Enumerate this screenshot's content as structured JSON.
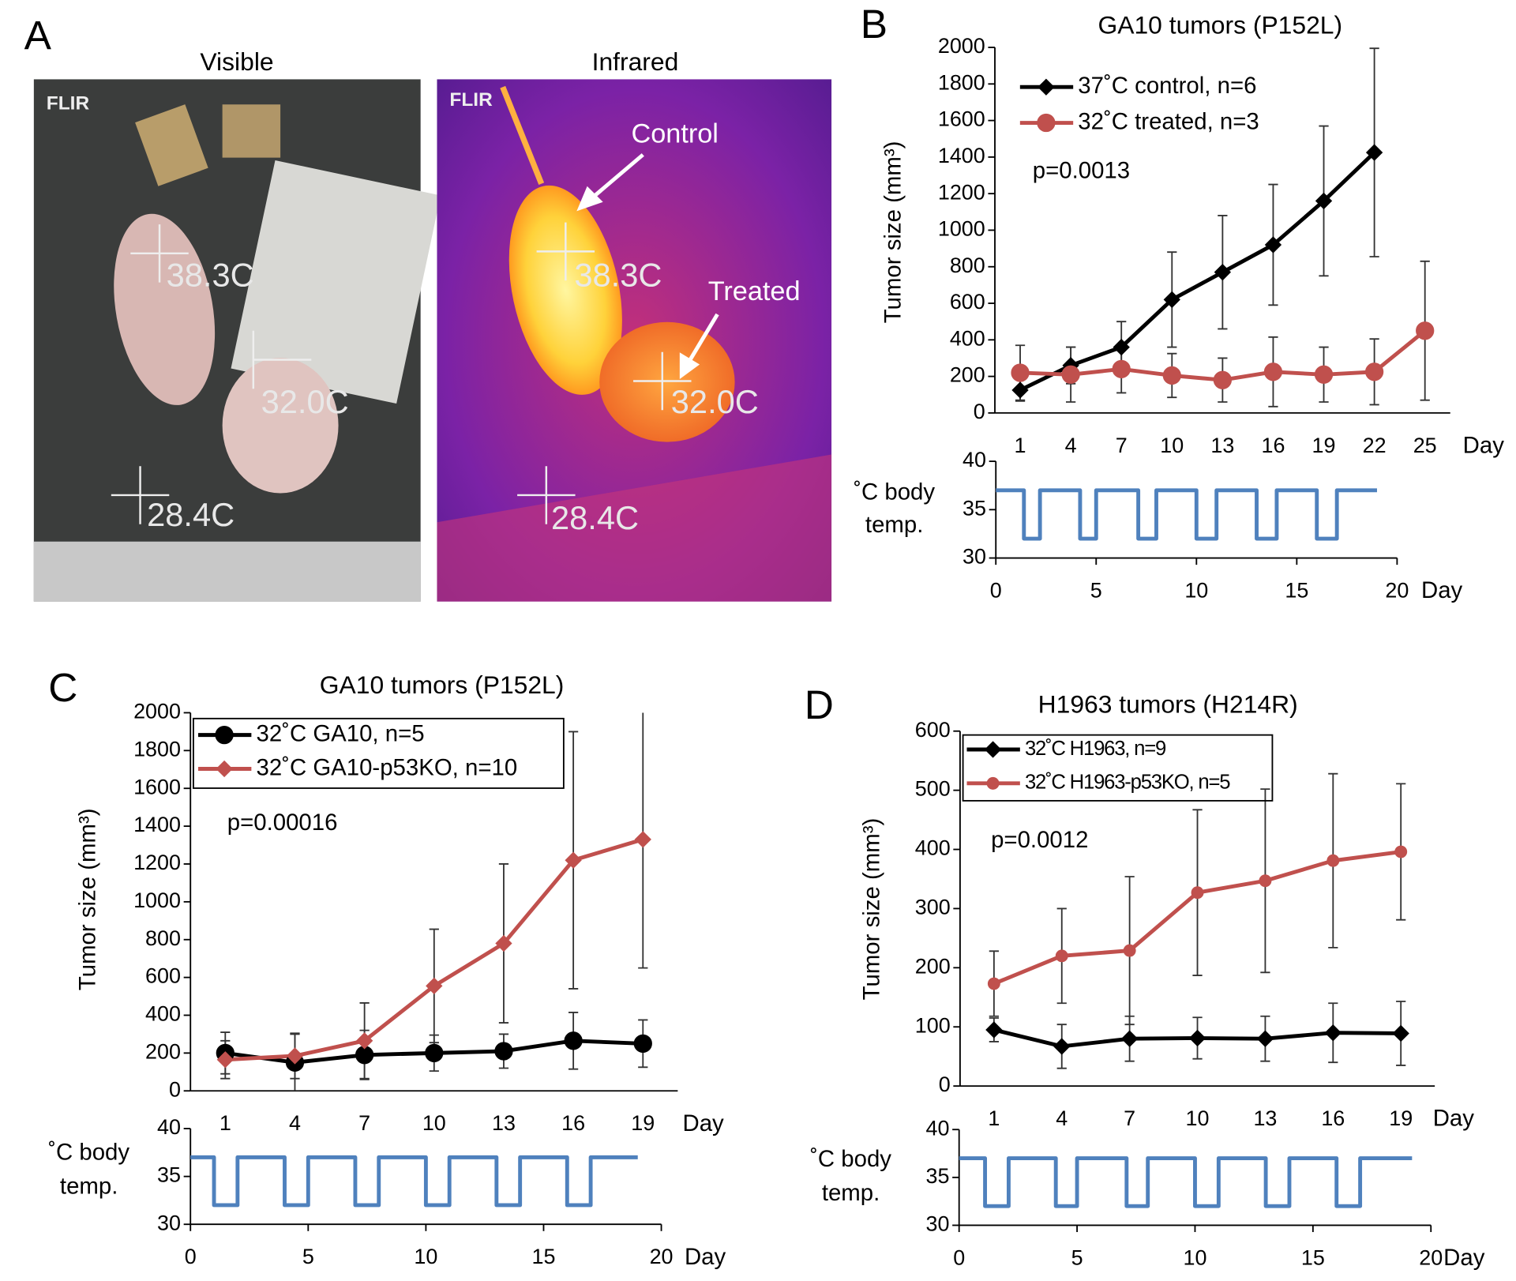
{
  "figure": {
    "panel_labels": [
      "A",
      "B",
      "C",
      "D"
    ],
    "photos": [
      {
        "title": "Visible",
        "logo": "FLIR",
        "readings": [
          "38.3C",
          "32.0C",
          "28.4C"
        ]
      },
      {
        "title": "Infrared",
        "logo": "FLIR",
        "readings": [
          "38.3C",
          "32.0C",
          "28.4C"
        ],
        "callouts": [
          "Control",
          "Treated"
        ]
      }
    ]
  },
  "chart_data": [
    {
      "type": "line",
      "title": "GA10 tumors (P152L)",
      "y_label": "Tumor size (mm³)",
      "x_label": "Day",
      "categories": [
        "1",
        "4",
        "7",
        "10",
        "13",
        "16",
        "19",
        "22",
        "25"
      ],
      "ylim": [
        0,
        2000
      ],
      "yticks": [
        0,
        200,
        400,
        600,
        800,
        1000,
        1200,
        1400,
        1600,
        1800,
        2000
      ],
      "annotation": "p=0.0013",
      "legend": "upper-left",
      "series": [
        {
          "name": "37˚C control, n=6",
          "color": "#000000",
          "marker": "diamond",
          "values": [
            125,
            260,
            360,
            620,
            770,
            920,
            1160,
            1425,
            null
          ],
          "errors": [
            60,
            100,
            140,
            260,
            310,
            330,
            410,
            570,
            null
          ]
        },
        {
          "name": "32˚C treated, n=3",
          "color": "#c0504d",
          "marker": "circle",
          "values": [
            220,
            210,
            240,
            205,
            180,
            225,
            210,
            225,
            450
          ],
          "errors": [
            150,
            150,
            130,
            120,
            120,
            190,
            150,
            180,
            380
          ]
        }
      ]
    },
    {
      "type": "line",
      "y_label": [
        "˚C body",
        "temp."
      ],
      "x_label": "Day",
      "color": "#4f81bd",
      "xlim": [
        0,
        20
      ],
      "xticks": [
        0,
        5,
        10,
        15,
        20
      ],
      "ylim": [
        30,
        40
      ],
      "yticks": [
        30,
        35,
        40
      ],
      "x": [
        0,
        1.4,
        1.4,
        2.2,
        2.2,
        4.2,
        4.2,
        5,
        5,
        7.1,
        7.1,
        8,
        8,
        10,
        10,
        11,
        11,
        13,
        13,
        14,
        14,
        16,
        16,
        17,
        17,
        19
      ],
      "values": [
        37,
        37,
        32,
        32,
        37,
        37,
        32,
        32,
        37,
        37,
        32,
        32,
        37,
        37,
        32,
        32,
        37,
        37,
        32,
        32,
        37,
        37,
        32,
        32,
        37,
        37
      ]
    },
    {
      "type": "line",
      "title": "GA10 tumors (P152L)",
      "y_label": "Tumor size (mm³)",
      "x_label": "Day",
      "categories": [
        "1",
        "4",
        "7",
        "10",
        "13",
        "16",
        "19"
      ],
      "ylim": [
        0,
        2000
      ],
      "yticks": [
        0,
        200,
        400,
        600,
        800,
        1000,
        1200,
        1400,
        1600,
        1800,
        2000
      ],
      "annotation": "p=0.00016",
      "legend": "upper-left",
      "series": [
        {
          "name": "32˚C GA10, n=5",
          "color": "#000000",
          "marker": "circle",
          "values": [
            200,
            150,
            190,
            200,
            210,
            265,
            250
          ],
          "errors": [
            110,
            150,
            130,
            95,
            90,
            150,
            125
          ]
        },
        {
          "name": "32˚C GA10-p53KO, n=10",
          "color": "#c0504d",
          "marker": "diamond",
          "values": [
            165,
            185,
            265,
            555,
            780,
            1220,
            1330
          ],
          "errors": [
            100,
            120,
            200,
            300,
            420,
            680,
            680
          ]
        }
      ]
    },
    {
      "type": "line",
      "y_label": [
        "˚C body",
        "temp."
      ],
      "x_label": "Day",
      "color": "#4f81bd",
      "xlim": [
        0,
        20
      ],
      "xticks": [
        0,
        5,
        10,
        15,
        20
      ],
      "ylim": [
        30,
        40
      ],
      "yticks": [
        30,
        35,
        40
      ],
      "x": [
        0,
        1,
        1,
        2,
        2,
        4,
        4,
        5,
        5,
        7,
        7,
        8,
        8,
        10,
        10,
        11,
        11,
        13,
        13,
        14,
        14,
        16,
        16,
        17,
        17,
        19
      ],
      "values": [
        37,
        37,
        32,
        32,
        37,
        37,
        32,
        32,
        37,
        37,
        32,
        32,
        37,
        37,
        32,
        32,
        37,
        37,
        32,
        32,
        37,
        37,
        32,
        32,
        37,
        37
      ]
    },
    {
      "type": "line",
      "title": "H1963 tumors (H214R)",
      "y_label": "Tumor size (mm³)",
      "x_label": "Day",
      "categories": [
        "1",
        "4",
        "7",
        "10",
        "13",
        "16",
        "19"
      ],
      "ylim": [
        0,
        600
      ],
      "yticks": [
        0,
        100,
        200,
        300,
        400,
        500,
        600
      ],
      "annotation": "p=0.0012",
      "legend": "upper-left",
      "series": [
        {
          "name": "32˚C H1963, n=9",
          "color": "#000000",
          "marker": "diamond",
          "values": [
            95,
            67,
            80,
            81,
            80,
            90,
            89
          ],
          "errors": [
            20,
            37,
            38,
            35,
            38,
            50,
            54
          ]
        },
        {
          "name": "32˚C H1963-p53KO, n=5",
          "color": "#c0504d",
          "marker": "circle",
          "values": [
            173,
            220,
            229,
            327,
            347,
            381,
            396
          ],
          "errors": [
            55,
            80,
            125,
            140,
            155,
            147,
            115
          ]
        }
      ]
    },
    {
      "type": "line",
      "y_label": [
        "˚C body",
        "temp."
      ],
      "x_label": "Day",
      "color": "#4f81bd",
      "xlim": [
        0,
        20
      ],
      "xticks": [
        0,
        5,
        10,
        15,
        20
      ],
      "ylim": [
        30,
        40
      ],
      "yticks": [
        30,
        35,
        40
      ],
      "x": [
        0,
        1.1,
        1.1,
        2.1,
        2.1,
        4.1,
        4.1,
        5,
        5,
        7.1,
        7.1,
        8,
        8,
        10,
        10,
        11,
        11,
        13,
        13,
        14,
        14,
        16,
        16,
        17,
        17,
        19.2
      ],
      "values": [
        37,
        37,
        32,
        32,
        37,
        37,
        32,
        32,
        37,
        37,
        32,
        32,
        37,
        37,
        32,
        32,
        37,
        37,
        32,
        32,
        37,
        37,
        32,
        32,
        37,
        37
      ]
    }
  ]
}
